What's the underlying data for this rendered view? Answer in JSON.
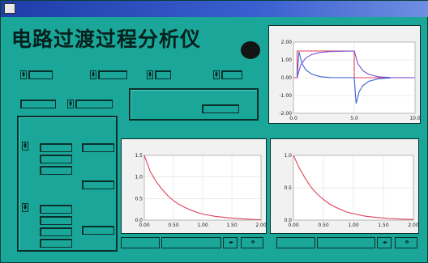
{
  "window": {
    "title": ""
  },
  "app_title": "电路过渡过程分析仪",
  "badge": "",
  "controls": {
    "top_labels": [
      "",
      "",
      "",
      ""
    ],
    "top_fields": [
      "",
      "",
      "",
      ""
    ],
    "mid_labels": [
      "",
      ""
    ],
    "mid_fields": [
      "",
      ""
    ],
    "circuit_box": {
      "label": "",
      "value_label": "",
      "value": ""
    }
  },
  "left_panel": {
    "header": "",
    "labels": [
      "",
      "",
      "",
      "",
      ""
    ],
    "fields": [
      "",
      "",
      "",
      "",
      "",
      "",
      "",
      "",
      "",
      ""
    ]
  },
  "plot_controls": {
    "left": [
      "",
      ""
    ],
    "right": [
      "",
      ""
    ]
  },
  "chart_data": [
    {
      "type": "line",
      "title": "",
      "xlabel": "",
      "ylabel": "",
      "xlim": [
        0,
        10
      ],
      "ylim": [
        -2,
        2
      ],
      "x_ticks": [
        "0.0",
        "5.0",
        "10.0"
      ],
      "y_ticks": [
        "2.00",
        "1.00",
        "0.00",
        "-1.00",
        "-2.00"
      ],
      "grid": true,
      "series": [
        {
          "color": "#e0405a",
          "x": [
            0,
            0.3,
            0.3,
            5.0,
            5.0,
            10.0
          ],
          "y": [
            0,
            0,
            1.5,
            1.5,
            0,
            0
          ]
        },
        {
          "color": "#7a4fd0",
          "x": [
            0.3,
            0.6,
            1.0,
            1.5,
            2.2,
            3.0,
            5.0,
            5.3,
            5.7,
            6.2,
            7.0,
            8.0,
            10.0
          ],
          "y": [
            0,
            0.72,
            1.1,
            1.3,
            1.42,
            1.47,
            1.5,
            0.78,
            0.4,
            0.18,
            0.05,
            0.01,
            0
          ]
        },
        {
          "color": "#3e63d8",
          "x": [
            0.3,
            0.45,
            0.7,
            1.0,
            1.5,
            2.2,
            3.0,
            5.0,
            5.15,
            5.4,
            5.7,
            6.2,
            7.0,
            8.0
          ],
          "y": [
            0,
            1.45,
            0.8,
            0.45,
            0.2,
            0.06,
            0.01,
            0,
            -1.45,
            -0.8,
            -0.45,
            -0.2,
            -0.06,
            -0.01
          ]
        }
      ]
    },
    {
      "type": "line",
      "title": "",
      "xlabel": "",
      "ylabel": "",
      "xlim": [
        0,
        2
      ],
      "ylim": [
        0,
        1.5
      ],
      "x_ticks": [
        "0.00",
        "0.50",
        "1.00",
        "1.50",
        "2.00"
      ],
      "y_ticks": [
        "1.5",
        "1.0",
        "0.5",
        "0.0"
      ],
      "grid": true,
      "annotations": [
        ""
      ],
      "series": [
        {
          "color": "#e0405a",
          "x": [
            0,
            0.1,
            0.2,
            0.3,
            0.4,
            0.5,
            0.6,
            0.7,
            0.8,
            0.9,
            1.0,
            1.2,
            1.4,
            1.6,
            1.8,
            2.0
          ],
          "y": [
            1.5,
            1.13,
            0.9,
            0.72,
            0.57,
            0.45,
            0.36,
            0.29,
            0.23,
            0.18,
            0.14,
            0.09,
            0.06,
            0.035,
            0.02,
            0.01
          ]
        }
      ]
    },
    {
      "type": "line",
      "title": "",
      "xlabel": "",
      "ylabel": "",
      "xlim": [
        0,
        2
      ],
      "ylim": [
        0,
        1.0
      ],
      "x_ticks": [
        "0.00",
        "0.50",
        "1.00",
        "1.50",
        "2.00"
      ],
      "y_ticks": [
        "1.0",
        "0.5",
        "0.0"
      ],
      "grid": true,
      "annotations": [
        ""
      ],
      "series": [
        {
          "color": "#e0405a",
          "x": [
            0,
            0.1,
            0.2,
            0.3,
            0.4,
            0.5,
            0.6,
            0.7,
            0.8,
            0.9,
            1.0,
            1.2,
            1.4,
            1.6,
            1.8,
            2.0
          ],
          "y": [
            1.0,
            0.8,
            0.64,
            0.5,
            0.4,
            0.32,
            0.25,
            0.2,
            0.16,
            0.12,
            0.1,
            0.06,
            0.04,
            0.025,
            0.015,
            0.01
          ]
        }
      ]
    }
  ]
}
